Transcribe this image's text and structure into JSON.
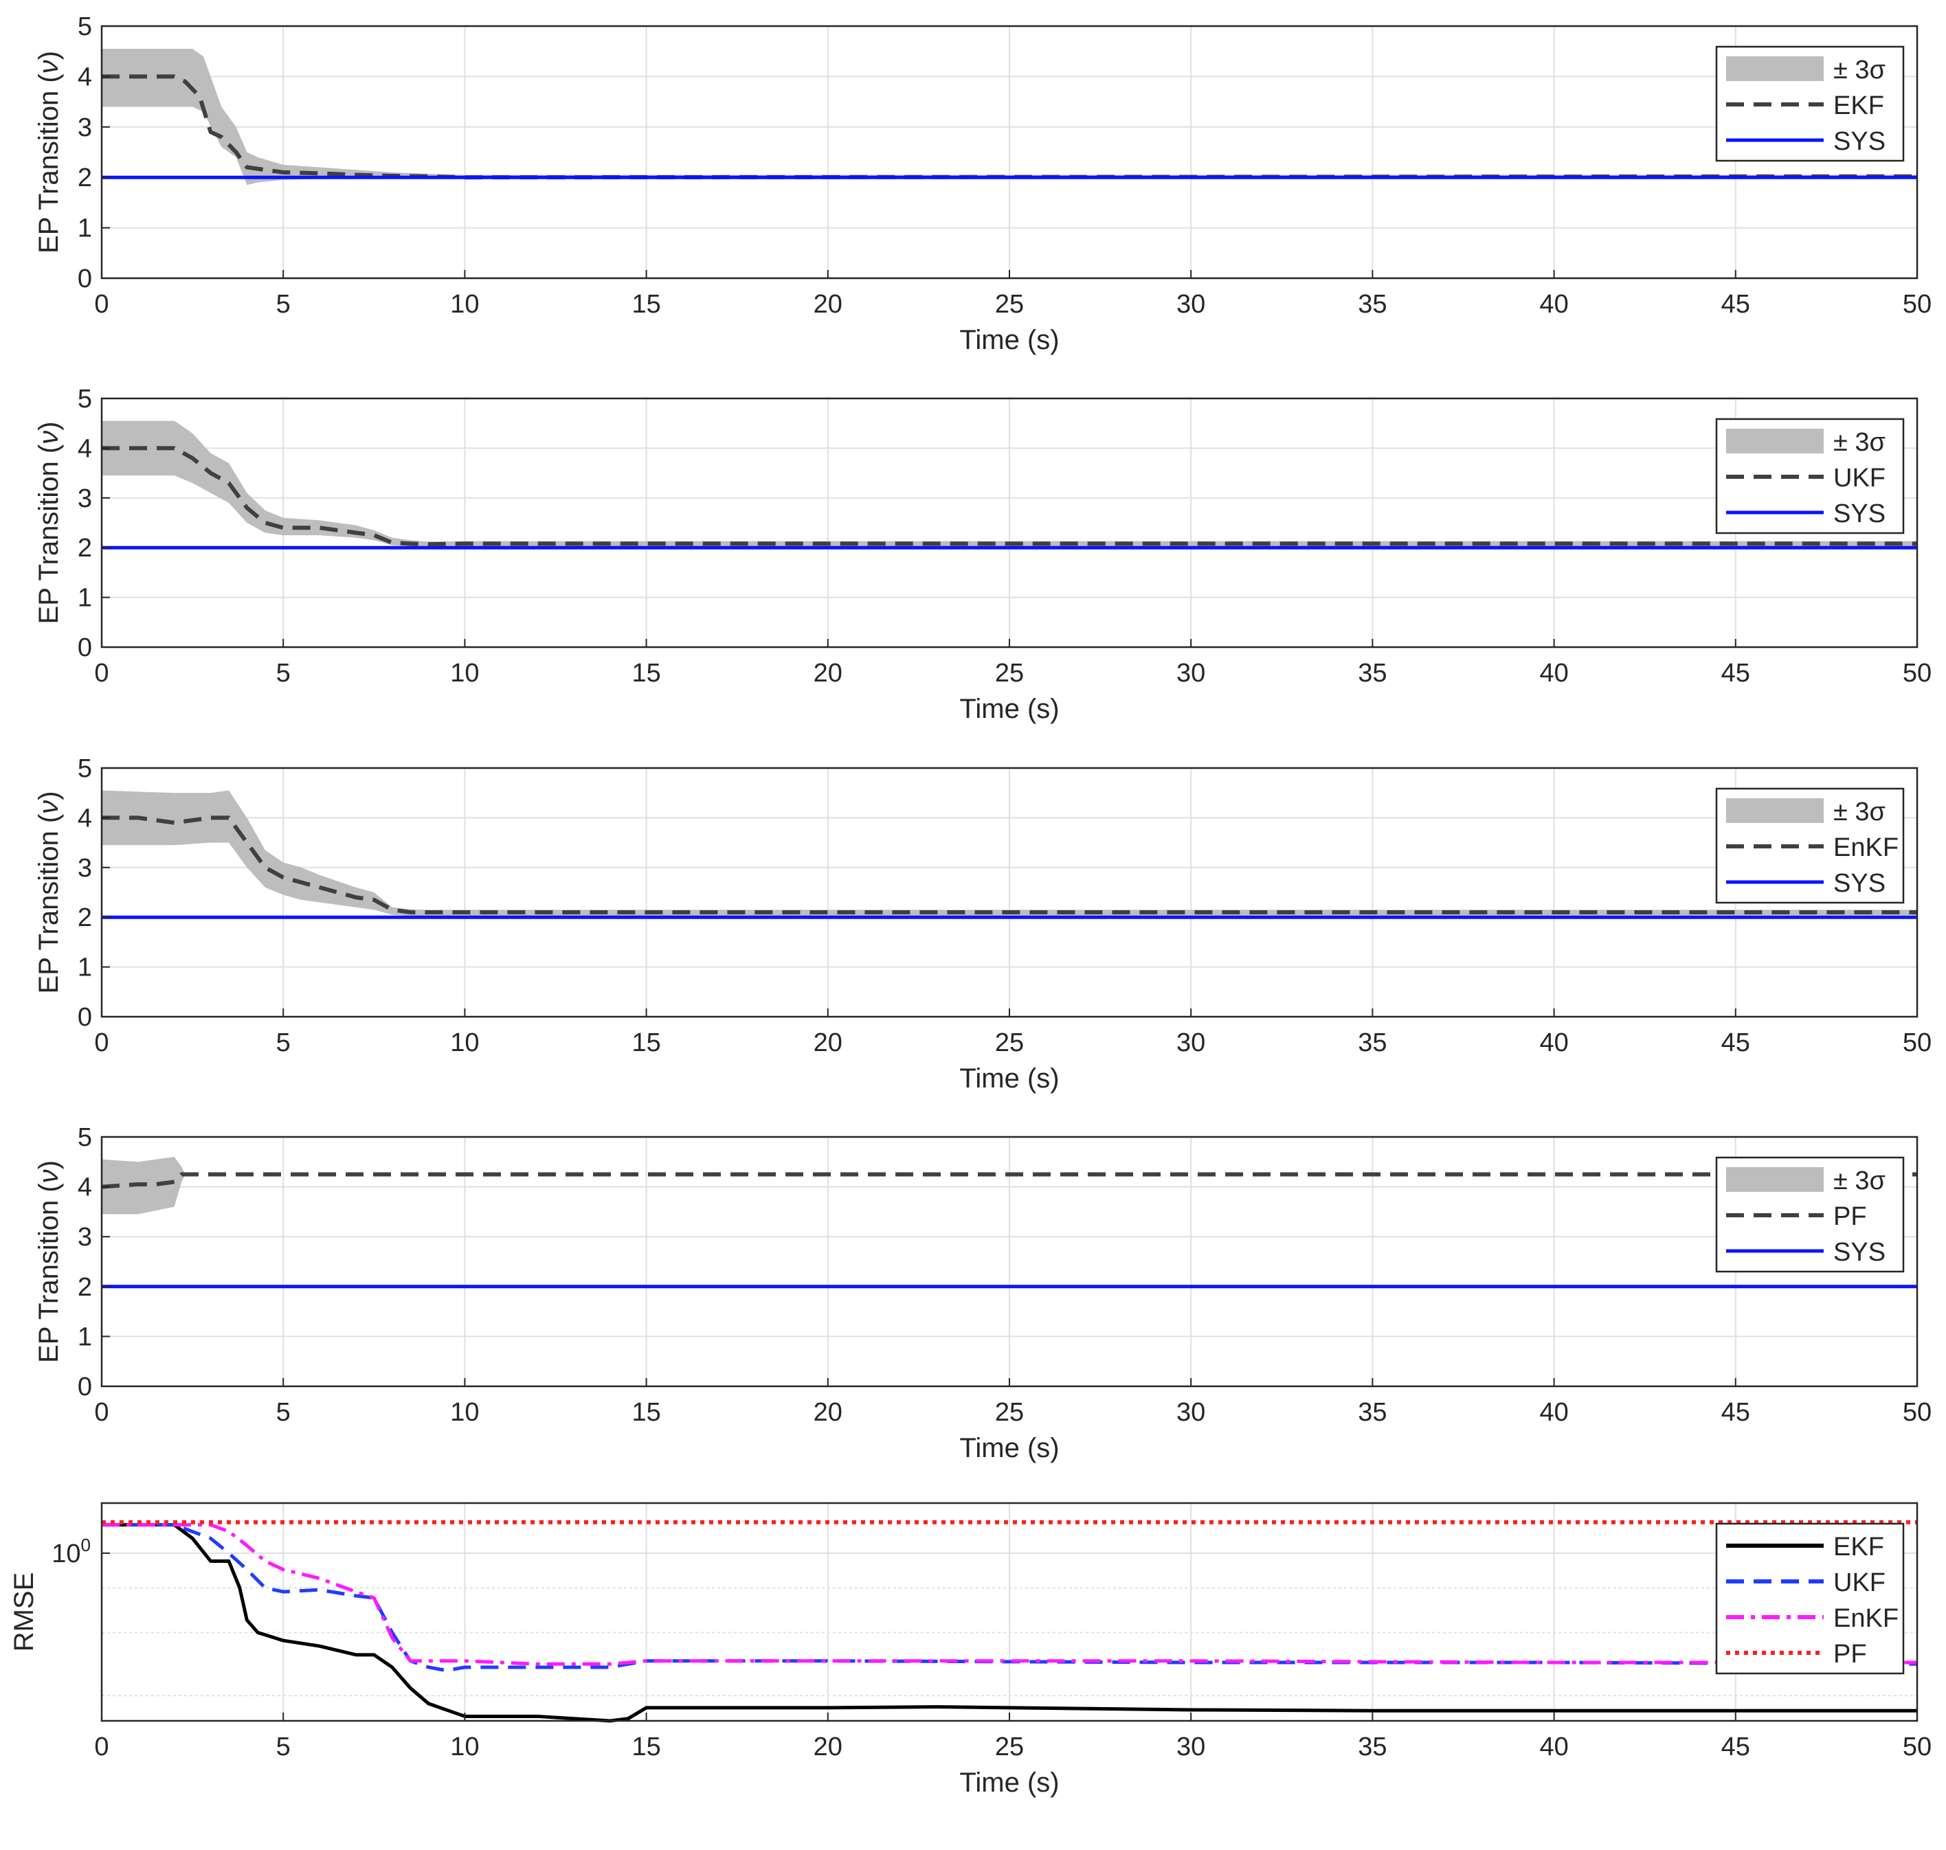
{
  "colors": {
    "band": "#bdbdbd",
    "estimate": "#404040",
    "sys": "#0a14ff",
    "ekf_rmse": "#000000",
    "ukf_rmse": "#1f3cff",
    "enkf_rmse": "#ff1aff",
    "pf_rmse": "#ff2020",
    "grid": "#e0e0e0",
    "axis": "#262626"
  },
  "chart_data": [
    {
      "type": "line",
      "xlabel": "Time (s)",
      "ylabel": "EP Transition",
      "ylabel_symbol": "ν",
      "xlim": [
        0,
        50
      ],
      "ylim": [
        0,
        5
      ],
      "xticks": [
        "0",
        "5",
        "10",
        "15",
        "20",
        "25",
        "30",
        "35",
        "40",
        "45",
        "50"
      ],
      "yticks": [
        "0",
        "1",
        "2",
        "3",
        "4",
        "5"
      ],
      "grid": true,
      "legend_position": "top-right",
      "legend": [
        "± 3σ",
        "EKF",
        "SYS"
      ],
      "series": [
        {
          "name": "EKF",
          "style": "dashed",
          "x": [
            0,
            1,
            2,
            2.3,
            2.7,
            3,
            3.3,
            3.7,
            4,
            4.5,
            5,
            6,
            7,
            8,
            9,
            10,
            50
          ],
          "y": [
            4,
            4,
            4,
            3.9,
            3.6,
            2.9,
            2.8,
            2.5,
            2.2,
            2.15,
            2.1,
            2.08,
            2.05,
            2.03,
            2.02,
            2.0,
            2.02
          ]
        },
        {
          "name": "± 3σ band",
          "type": "band",
          "x": [
            0,
            2.5,
            2.8,
            3.3,
            3.7,
            4,
            4.3,
            5,
            6,
            7,
            8,
            9,
            10,
            50
          ],
          "lower": [
            3.4,
            3.4,
            3.3,
            2.6,
            2.4,
            1.85,
            1.9,
            1.95,
            1.97,
            1.99,
            2.0,
            2.0,
            2.0,
            2.0
          ],
          "upper": [
            4.55,
            4.55,
            4.4,
            3.4,
            3.0,
            2.5,
            2.4,
            2.25,
            2.2,
            2.15,
            2.1,
            2.07,
            2.05,
            2.05
          ]
        },
        {
          "name": "SYS",
          "style": "solid",
          "x": [
            0,
            50
          ],
          "y": [
            2,
            2
          ]
        }
      ]
    },
    {
      "type": "line",
      "xlabel": "Time (s)",
      "ylabel": "EP Transition",
      "ylabel_symbol": "ν",
      "xlim": [
        0,
        50
      ],
      "ylim": [
        0,
        5
      ],
      "xticks": [
        "0",
        "5",
        "10",
        "15",
        "20",
        "25",
        "30",
        "35",
        "40",
        "45",
        "50"
      ],
      "yticks": [
        "0",
        "1",
        "2",
        "3",
        "4",
        "5"
      ],
      "grid": true,
      "legend_position": "top-right",
      "legend": [
        "± 3σ",
        "UKF",
        "SYS"
      ],
      "series": [
        {
          "name": "UKF",
          "style": "dashed",
          "x": [
            0,
            1,
            2,
            2.5,
            3,
            3.5,
            4,
            4.5,
            5,
            6,
            7,
            7.5,
            8,
            8.5,
            9,
            10,
            50
          ],
          "y": [
            4,
            4,
            4,
            3.8,
            3.5,
            3.3,
            2.8,
            2.5,
            2.4,
            2.4,
            2.3,
            2.25,
            2.1,
            2.08,
            2.07,
            2.08,
            2.08
          ]
        },
        {
          "name": "± 3σ band",
          "type": "band",
          "x": [
            0,
            2,
            2.5,
            3,
            3.5,
            4,
            4.5,
            5,
            6,
            7,
            7.5,
            8,
            8.5,
            9,
            10,
            50
          ],
          "lower": [
            3.45,
            3.45,
            3.3,
            3.1,
            2.9,
            2.5,
            2.3,
            2.25,
            2.25,
            2.2,
            2.15,
            2.05,
            2.03,
            2.02,
            2.02,
            2.03
          ],
          "upper": [
            4.55,
            4.55,
            4.3,
            3.9,
            3.7,
            3.1,
            2.75,
            2.6,
            2.55,
            2.45,
            2.35,
            2.2,
            2.15,
            2.12,
            2.13,
            2.13
          ]
        },
        {
          "name": "SYS",
          "style": "solid",
          "x": [
            0,
            50
          ],
          "y": [
            2,
            2
          ]
        }
      ]
    },
    {
      "type": "line",
      "xlabel": "Time (s)",
      "ylabel": "EP Transition",
      "ylabel_symbol": "ν",
      "xlim": [
        0,
        50
      ],
      "ylim": [
        0,
        5
      ],
      "xticks": [
        "0",
        "5",
        "10",
        "15",
        "20",
        "25",
        "30",
        "35",
        "40",
        "45",
        "50"
      ],
      "yticks": [
        "0",
        "1",
        "2",
        "3",
        "4",
        "5"
      ],
      "grid": true,
      "legend_position": "top-right",
      "legend": [
        "± 3σ",
        "EnKF",
        "SYS"
      ],
      "series": [
        {
          "name": "EnKF",
          "style": "dashed",
          "x": [
            0,
            1,
            2,
            2.5,
            3,
            3.5,
            4,
            4.5,
            5,
            5.5,
            6,
            7,
            7.5,
            8,
            8.5,
            9,
            10,
            50
          ],
          "y": [
            4,
            4,
            3.9,
            3.95,
            4,
            4,
            3.5,
            3.0,
            2.8,
            2.7,
            2.6,
            2.4,
            2.35,
            2.15,
            2.1,
            2.1,
            2.1,
            2.1
          ]
        },
        {
          "name": "± 3σ band",
          "type": "band",
          "x": [
            0,
            2,
            3,
            3.5,
            4,
            4.5,
            5,
            5.5,
            6,
            7,
            7.5,
            8,
            8.5,
            9,
            10,
            50
          ],
          "lower": [
            3.45,
            3.45,
            3.5,
            3.5,
            3.0,
            2.6,
            2.45,
            2.35,
            2.3,
            2.2,
            2.15,
            2.05,
            2.03,
            2.03,
            2.03,
            2.04
          ],
          "upper": [
            4.55,
            4.5,
            4.5,
            4.55,
            4.0,
            3.35,
            3.1,
            3.0,
            2.85,
            2.6,
            2.5,
            2.2,
            2.16,
            2.15,
            2.15,
            2.15
          ]
        },
        {
          "name": "SYS",
          "style": "solid",
          "x": [
            0,
            50
          ],
          "y": [
            2,
            2
          ]
        }
      ]
    },
    {
      "type": "line",
      "xlabel": "Time (s)",
      "ylabel": "EP Transition",
      "ylabel_symbol": "ν",
      "xlim": [
        0,
        50
      ],
      "ylim": [
        0,
        5
      ],
      "xticks": [
        "0",
        "5",
        "10",
        "15",
        "20",
        "25",
        "30",
        "35",
        "40",
        "45",
        "50"
      ],
      "yticks": [
        "0",
        "1",
        "2",
        "3",
        "4",
        "5"
      ],
      "grid": true,
      "legend_position": "top-right",
      "legend": [
        "± 3σ",
        "PF",
        "SYS"
      ],
      "series": [
        {
          "name": "PF",
          "style": "dashed",
          "x": [
            0,
            1,
            1.5,
            2,
            2.2,
            50
          ],
          "y": [
            4,
            4.05,
            4.05,
            4.1,
            4.25,
            4.25
          ]
        },
        {
          "name": "± 3σ band",
          "type": "band",
          "x": [
            0,
            1,
            2,
            2.2,
            2.3
          ],
          "lower": [
            3.45,
            3.45,
            3.6,
            4.1,
            4.25
          ],
          "upper": [
            4.55,
            4.5,
            4.6,
            4.4,
            4.25
          ]
        },
        {
          "name": "SYS",
          "style": "solid",
          "x": [
            0,
            50
          ],
          "y": [
            2,
            2
          ]
        }
      ]
    },
    {
      "type": "line",
      "xlabel": "Time (s)",
      "ylabel": "RMSE",
      "yscale": "log",
      "xlim": [
        0,
        50
      ],
      "ylim": [
        0.34,
        1.38
      ],
      "xticks": [
        "0",
        "5",
        "10",
        "15",
        "20",
        "25",
        "30",
        "35",
        "40",
        "45",
        "50"
      ],
      "yticks": [
        {
          "base": "10",
          "exp": "0",
          "value": 1
        }
      ],
      "grid": true,
      "legend_position": "top-right",
      "legend": [
        "EKF",
        "UKF",
        "EnKF",
        "PF"
      ],
      "series": [
        {
          "name": "EKF",
          "style": "solid",
          "x": [
            0,
            2,
            2.5,
            3,
            3.5,
            3.8,
            4,
            4.3,
            5,
            6,
            7,
            7.5,
            8,
            8.5,
            9,
            10,
            11,
            12,
            13,
            14,
            14.5,
            15,
            17,
            20,
            23,
            25,
            30,
            35,
            40,
            45,
            50
          ],
          "y": [
            1.2,
            1.2,
            1.1,
            0.95,
            0.95,
            0.8,
            0.65,
            0.6,
            0.57,
            0.55,
            0.52,
            0.52,
            0.48,
            0.42,
            0.38,
            0.35,
            0.35,
            0.35,
            0.345,
            0.34,
            0.345,
            0.37,
            0.37,
            0.37,
            0.372,
            0.37,
            0.365,
            0.363,
            0.363,
            0.363,
            0.363
          ]
        },
        {
          "name": "UKF",
          "style": "dashed",
          "x": [
            0,
            2,
            3,
            3.5,
            4,
            4.5,
            5,
            6,
            7,
            7.5,
            8,
            8.5,
            9,
            9.5,
            10,
            12,
            14,
            15,
            16,
            20,
            30,
            40,
            50
          ],
          "y": [
            1.2,
            1.2,
            1.1,
            1.0,
            0.9,
            0.8,
            0.78,
            0.79,
            0.76,
            0.75,
            0.6,
            0.5,
            0.48,
            0.47,
            0.48,
            0.48,
            0.48,
            0.5,
            0.5,
            0.5,
            0.495,
            0.495,
            0.49
          ]
        },
        {
          "name": "EnKF",
          "style": "dashdot",
          "x": [
            0,
            2,
            3,
            3.5,
            4,
            4.5,
            5,
            6,
            7,
            7.5,
            8,
            8.5,
            9,
            10,
            12,
            14,
            15,
            16,
            20,
            30,
            40,
            50
          ],
          "y": [
            1.2,
            1.2,
            1.2,
            1.15,
            1.05,
            0.95,
            0.9,
            0.85,
            0.78,
            0.75,
            0.58,
            0.5,
            0.5,
            0.5,
            0.49,
            0.49,
            0.5,
            0.5,
            0.5,
            0.5,
            0.495,
            0.495
          ]
        },
        {
          "name": "PF",
          "style": "dotted",
          "x": [
            0,
            50
          ],
          "y": [
            1.22,
            1.22
          ]
        }
      ]
    }
  ]
}
